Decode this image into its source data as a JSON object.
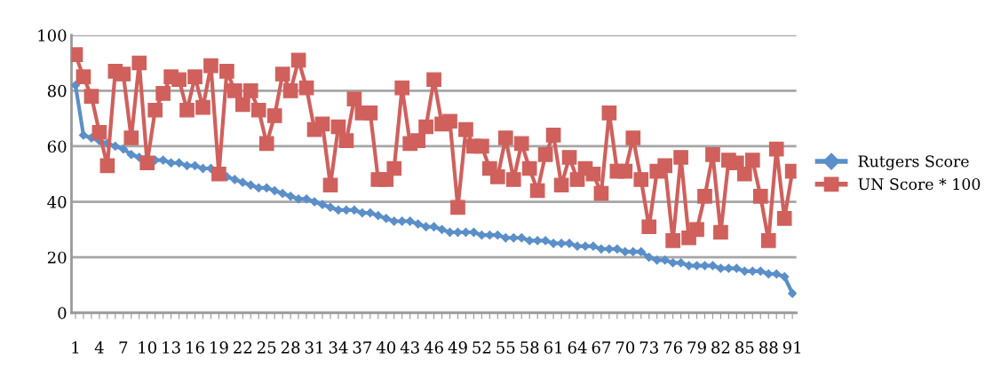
{
  "chart_data": {
    "type": "line",
    "categories": [
      "1",
      null,
      null,
      "4",
      null,
      null,
      "7",
      null,
      null,
      "10",
      null,
      null,
      "13",
      null,
      null,
      "16",
      null,
      null,
      "19",
      null,
      null,
      "22",
      null,
      null,
      "25",
      null,
      null,
      "28",
      null,
      null,
      "31",
      null,
      null,
      "34",
      null,
      null,
      "37",
      null,
      null,
      "40",
      null,
      null,
      "43",
      null,
      null,
      "46",
      null,
      null,
      "49",
      null,
      null,
      "52",
      null,
      null,
      "55",
      null,
      null,
      "58",
      null,
      null,
      "61",
      null,
      null,
      "64",
      null,
      null,
      "67",
      null,
      null,
      "70",
      null,
      null,
      "73",
      null,
      null,
      "76",
      null,
      null,
      "79",
      null,
      null,
      "82",
      null,
      null,
      "85",
      null,
      null,
      "88",
      null,
      null,
      "91"
    ],
    "series": [
      {
        "name": "Rutgers Score",
        "color": "#5b8fc9",
        "marker": "diamond",
        "values": [
          82,
          64,
          63,
          62,
          61,
          60,
          59,
          57,
          56,
          56,
          55,
          55,
          54,
          54,
          53,
          53,
          52,
          52,
          50,
          49,
          48,
          47,
          46,
          45,
          45,
          44,
          43,
          42,
          41,
          41,
          40,
          39,
          38,
          37,
          37,
          37,
          36,
          36,
          35,
          34,
          33,
          33,
          33,
          32,
          31,
          31,
          30,
          29,
          29,
          29,
          29,
          28,
          28,
          28,
          27,
          27,
          27,
          26,
          26,
          26,
          25,
          25,
          25,
          24,
          24,
          24,
          23,
          23,
          23,
          22,
          22,
          22,
          20,
          19,
          19,
          18,
          18,
          17,
          17,
          17,
          17,
          16,
          16,
          16,
          15,
          15,
          15,
          14,
          14,
          13,
          7
        ]
      },
      {
        "name": "UN Score * 100",
        "color": "#d0605c",
        "marker": "square",
        "values": [
          93,
          85,
          78,
          65,
          53,
          87,
          86,
          63,
          90,
          54,
          73,
          79,
          85,
          84,
          73,
          85,
          74,
          89,
          50,
          87,
          80,
          75,
          80,
          73,
          61,
          71,
          86,
          80,
          91,
          81,
          66,
          68,
          46,
          67,
          62,
          77,
          72,
          72,
          48,
          48,
          52,
          81,
          61,
          62,
          67,
          84,
          68,
          69,
          38,
          66,
          60,
          60,
          52,
          49,
          63,
          48,
          61,
          52,
          44,
          57,
          64,
          46,
          56,
          48,
          52,
          50,
          43,
          72,
          51,
          51,
          63,
          48,
          31,
          51,
          53,
          26,
          56,
          27,
          30,
          42,
          57,
          29,
          55,
          54,
          50,
          55,
          42,
          26,
          59,
          34,
          51
        ]
      }
    ],
    "ylim": [
      0,
      100
    ],
    "yticks": [
      0,
      20,
      40,
      60,
      80,
      100
    ],
    "grid": "y",
    "legend": "right",
    "line_style": "solid"
  }
}
